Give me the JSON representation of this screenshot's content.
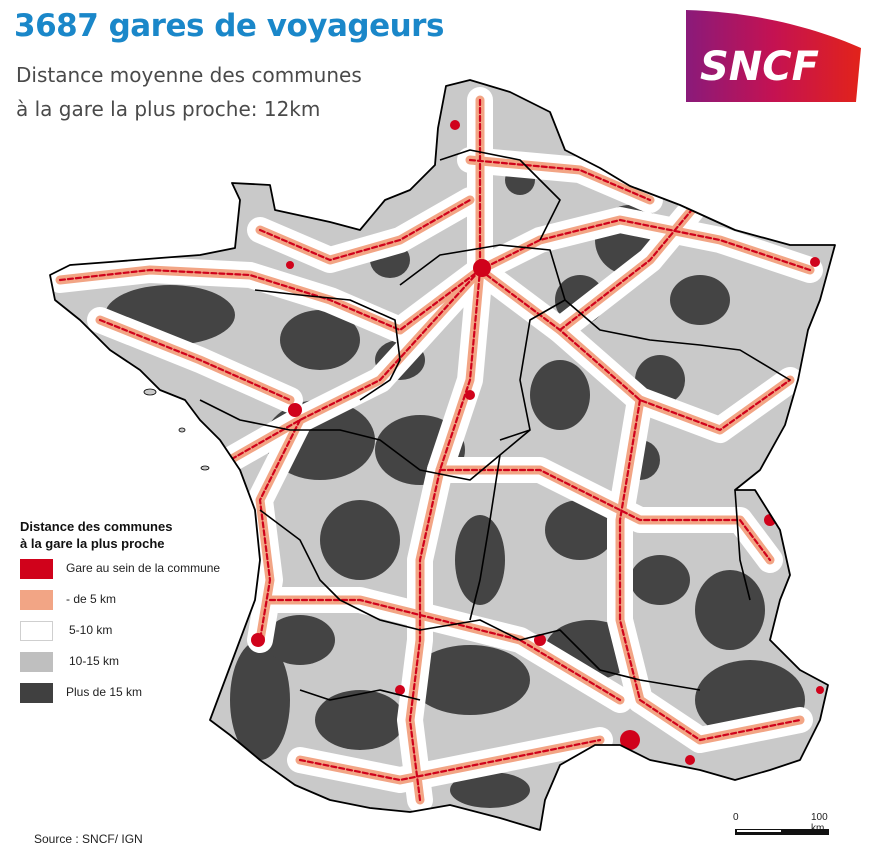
{
  "title": "3687 gares de voyageurs",
  "subtitle_line1": "Distance moyenne des communes",
  "subtitle_line2": "à la gare la plus proche: 12km",
  "logo_text": "SNCF",
  "legend": {
    "title_line1": "Distance des communes",
    "title_line2": "à la gare la plus proche",
    "items": [
      {
        "label": "Gare au sein de la commune",
        "color": "#d0021b"
      },
      {
        "label": "- de 5 km",
        "color": "#f2a585"
      },
      {
        "label": "5-10 km",
        "color": "#ffffff"
      },
      {
        "label": "10-15 km",
        "color": "#bfbfbf"
      },
      {
        "label": "Plus de 15 km",
        "color": "#404040"
      }
    ]
  },
  "source": "Source : SNCF/ IGN",
  "scale": {
    "start_label": "0",
    "end_label": "100 km"
  }
}
